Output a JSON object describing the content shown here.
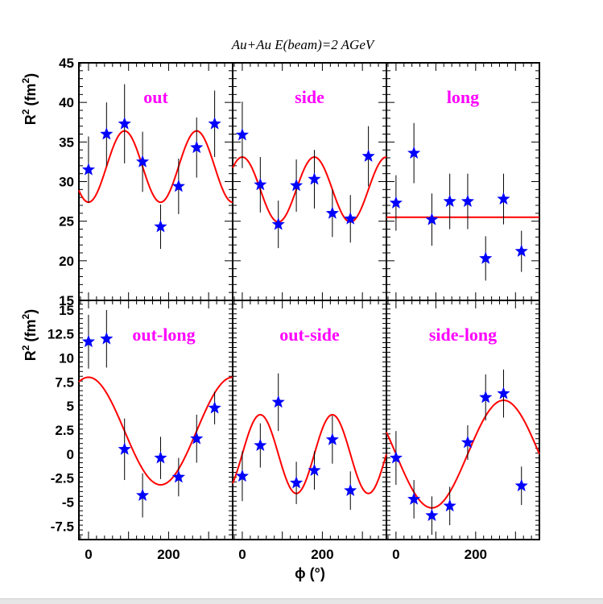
{
  "chart_data": {
    "title": "Au+Au E(beam)=2 AGeV",
    "type": "scatter",
    "xlabel": "ϕ (°)",
    "xlim": [
      -24,
      360
    ],
    "xticks": [
      0,
      200
    ],
    "ylabel_base": "R",
    "ylabel_sup": "2",
    "ylabel_unit": "(fm",
    "ylabel_unit_sup": "2",
    "ylabel_close": ")",
    "marker_color": "#0000ff",
    "fit_color": "#ff0000",
    "panel_label_color": "#ff00ff",
    "top_row": {
      "ylim": [
        15,
        45
      ],
      "yticks": [
        15,
        20,
        25,
        30,
        35,
        40,
        45
      ],
      "ytick_labels": [
        "15",
        "20",
        "25",
        "30",
        "35",
        "40",
        "45"
      ]
    },
    "bottom_row": {
      "ylim": [
        -8.9,
        16
      ],
      "yticks": [
        -7.5,
        -5,
        -2.5,
        0,
        2.5,
        5,
        7.5,
        10,
        12.5,
        15
      ],
      "ytick_labels": [
        "-7.5",
        "-5",
        "-2.5",
        "0",
        "2.5",
        "5",
        "7.5",
        "10",
        "12.5",
        "15"
      ]
    },
    "panels": [
      {
        "label": "out",
        "points": [
          {
            "x": 0,
            "y": 31.5,
            "err": 4.2
          },
          {
            "x": 45,
            "y": 36.0,
            "err": 4.0
          },
          {
            "x": 90,
            "y": 37.3,
            "err": 5.0
          },
          {
            "x": 135,
            "y": 32.5,
            "err": 3.8
          },
          {
            "x": 180,
            "y": 24.3,
            "err": 2.8
          },
          {
            "x": 225,
            "y": 29.4,
            "err": 3.5
          },
          {
            "x": 270,
            "y": 34.3,
            "err": 3.8
          },
          {
            "x": 315,
            "y": 37.3,
            "err": 4.2
          }
        ],
        "fit": {
          "c": 31.9,
          "a": -4.5,
          "b": 0
        }
      },
      {
        "label": "side",
        "points": [
          {
            "x": 0,
            "y": 35.9,
            "err": 4.2
          },
          {
            "x": 45,
            "y": 29.6,
            "err": 3.5
          },
          {
            "x": 90,
            "y": 24.6,
            "err": 3.0
          },
          {
            "x": 135,
            "y": 29.5,
            "err": 3.3
          },
          {
            "x": 180,
            "y": 30.3,
            "err": 3.7
          },
          {
            "x": 225,
            "y": 26.0,
            "err": 3.0
          },
          {
            "x": 270,
            "y": 25.3,
            "err": 3.0
          },
          {
            "x": 315,
            "y": 33.2,
            "err": 3.8
          }
        ],
        "fit": {
          "c": 29.0,
          "a": 4.1,
          "b": 0
        }
      },
      {
        "label": "long",
        "points": [
          {
            "x": 0,
            "y": 27.3,
            "err": 3.5
          },
          {
            "x": 45,
            "y": 33.6,
            "err": 3.8
          },
          {
            "x": 90,
            "y": 25.2,
            "err": 3.3
          },
          {
            "x": 135,
            "y": 27.5,
            "err": 3.5
          },
          {
            "x": 180,
            "y": 27.5,
            "err": 3.5
          },
          {
            "x": 225,
            "y": 20.3,
            "err": 2.8
          },
          {
            "x": 270,
            "y": 27.8,
            "err": 3.2
          },
          {
            "x": 315,
            "y": 21.2,
            "err": 2.6
          }
        ],
        "fit": {
          "c": 25.5,
          "a": 0,
          "b": 0
        }
      },
      {
        "label": "out-long",
        "points": [
          {
            "x": 0,
            "y": 11.7,
            "err": 2.8
          },
          {
            "x": 45,
            "y": 12.0,
            "err": 3.0
          },
          {
            "x": 90,
            "y": 0.5,
            "err": 3.2
          },
          {
            "x": 135,
            "y": -4.3,
            "err": 2.3
          },
          {
            "x": 180,
            "y": -0.4,
            "err": 2.2
          },
          {
            "x": 225,
            "y": -2.4,
            "err": 2.0
          },
          {
            "x": 270,
            "y": 1.6,
            "err": 2.5
          },
          {
            "x": 315,
            "y": 4.8,
            "err": 1.7
          }
        ],
        "fit": {
          "c": 2.4,
          "a": 5.6,
          "period": 360
        }
      },
      {
        "label": "out-side",
        "points": [
          {
            "x": 0,
            "y": -2.3,
            "err": 2.6
          },
          {
            "x": 45,
            "y": 0.9,
            "err": 2.3
          },
          {
            "x": 90,
            "y": 5.4,
            "err": 3.0
          },
          {
            "x": 135,
            "y": -3.0,
            "err": 2.2
          },
          {
            "x": 180,
            "y": -1.7,
            "err": 2.0
          },
          {
            "x": 225,
            "y": 1.5,
            "err": 2.5
          },
          {
            "x": 270,
            "y": -3.8,
            "err": 2.0
          },
          {
            "x": 315,
            "y": null,
            "err": null
          }
        ],
        "fit": {
          "c": 0,
          "a": 4.1,
          "b": 0,
          "sin": true
        }
      },
      {
        "label": "side-long",
        "points": [
          {
            "x": 0,
            "y": -0.4,
            "err": 2.8
          },
          {
            "x": 45,
            "y": -4.7,
            "err": 2.0
          },
          {
            "x": 90,
            "y": -6.4,
            "err": 2.0
          },
          {
            "x": 135,
            "y": -5.4,
            "err": 2.0
          },
          {
            "x": 180,
            "y": 1.2,
            "err": 1.8
          },
          {
            "x": 225,
            "y": 5.9,
            "err": 2.4
          },
          {
            "x": 270,
            "y": 6.3,
            "err": 2.5
          },
          {
            "x": 315,
            "y": -3.3,
            "err": 2.0
          }
        ],
        "fit": {
          "c": 0,
          "a": -5.6,
          "sinFirst": true
        }
      }
    ]
  }
}
